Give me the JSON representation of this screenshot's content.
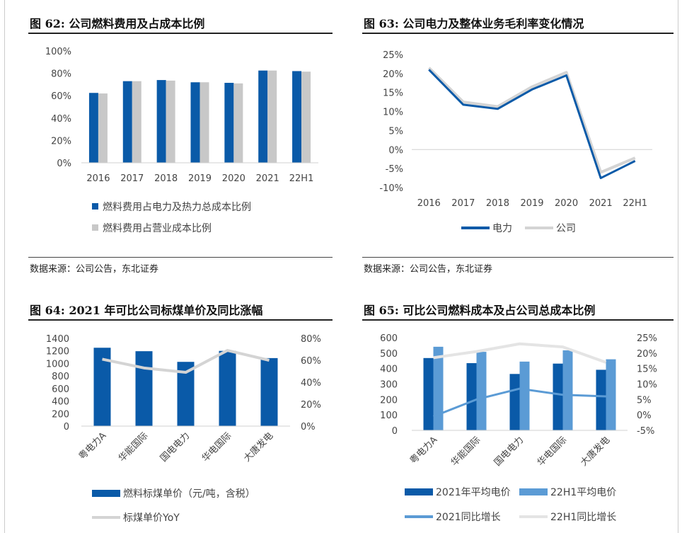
{
  "figures": [
    {
      "title": "图 62: 公司燃料费用及占成本比例",
      "source": "数据来源：公司公告，东北证券"
    },
    {
      "title": "图 63: 公司电力及整体业务毛利率变化情况",
      "source": "数据来源：公司公告，东北证券"
    },
    {
      "title": "图 64: 2021 年可比公司标煤单价及同比涨幅",
      "source": ""
    },
    {
      "title": "图 65: 可比公司燃料成本及占公司总成本比例",
      "source": ""
    }
  ],
  "colors": {
    "blue_dark": "#0a5aa8",
    "blue_light": "#5b9bd5",
    "gray": "#c8c8c8",
    "gray_line": "#d4d4d4"
  },
  "chart_data": [
    {
      "id": "fig62",
      "type": "bar",
      "categories": [
        "2016",
        "2017",
        "2018",
        "2019",
        "2020",
        "2021",
        "22H1"
      ],
      "series": [
        {
          "name": "燃料费用占电力及热力总成本比例",
          "values": [
            62.5,
            73,
            74,
            72,
            71.5,
            82.5,
            82
          ],
          "color": "#0a5aa8"
        },
        {
          "name": "燃料费用占营业成本比例",
          "values": [
            62,
            73,
            73.5,
            72,
            71,
            82.5,
            81.5
          ],
          "color": "#c8c8c8"
        }
      ],
      "ylim": [
        0,
        100
      ],
      "yticks": [
        "0%",
        "20%",
        "40%",
        "60%",
        "80%",
        "100%"
      ],
      "ytick_values": [
        0,
        20,
        40,
        60,
        80,
        100
      ],
      "grid": false,
      "legend": "bottom"
    },
    {
      "id": "fig63",
      "type": "line",
      "categories": [
        "2016",
        "2017",
        "2018",
        "2019",
        "2020",
        "2021",
        "22H1"
      ],
      "series": [
        {
          "name": "电力",
          "values": [
            21.0,
            11.8,
            10.7,
            15.8,
            19.5,
            -7.5,
            -3.0
          ],
          "color": "#0a5aa8"
        },
        {
          "name": "公司",
          "values": [
            21.5,
            12.5,
            11.3,
            16.5,
            20.3,
            -6.0,
            -2.2
          ],
          "color": "#d4d4d4"
        }
      ],
      "ylim": [
        -10,
        25
      ],
      "yticks": [
        "-10%",
        "-5%",
        "0%",
        "5%",
        "10%",
        "15%",
        "20%",
        "25%"
      ],
      "ytick_values": [
        -10,
        -5,
        0,
        5,
        10,
        15,
        20,
        25
      ],
      "grid": false,
      "legend": "bottom"
    },
    {
      "id": "fig64",
      "type": "bar",
      "categories": [
        "粤电力A",
        "华能国际",
        "国电电力",
        "华电国际",
        "大唐发电"
      ],
      "series": [
        {
          "name": "燃料标煤单价（元/吨，含税）",
          "values": [
            1250,
            1195,
            1025,
            1200,
            1085
          ],
          "axis": "left",
          "color": "#0a5aa8"
        },
        {
          "name": "标煤单价YoY",
          "values": [
            61,
            53,
            49,
            69,
            60
          ],
          "axis": "right",
          "kind": "line",
          "color": "#d4d4d4"
        }
      ],
      "ylim_left": [
        0,
        1400
      ],
      "yticks_left": [
        "0",
        "200",
        "400",
        "600",
        "800",
        "1000",
        "1200",
        "1400"
      ],
      "ytick_values_left": [
        0,
        200,
        400,
        600,
        800,
        1000,
        1200,
        1400
      ],
      "ylim_right": [
        0,
        80
      ],
      "yticks_right": [
        "0%",
        "20%",
        "40%",
        "60%",
        "80%"
      ],
      "ytick_values_right": [
        0,
        20,
        40,
        60,
        80
      ],
      "grid": false,
      "legend": "bottom"
    },
    {
      "id": "fig65",
      "type": "bar",
      "categories": [
        "粤电力A",
        "华能国际",
        "国电电力",
        "华电国际",
        "大唐发电"
      ],
      "series": [
        {
          "name": "2021年平均电价",
          "values": [
            468,
            435,
            365,
            432,
            392
          ],
          "axis": "left",
          "color": "#0a5aa8"
        },
        {
          "name": "22H1平均电价",
          "values": [
            541,
            508,
            445,
            518,
            460
          ],
          "axis": "left",
          "color": "#5b9bd5"
        },
        {
          "name": "2021同比增长",
          "values": [
            -0.5,
            5.0,
            8.5,
            6.5,
            6.0
          ],
          "axis": "right",
          "kind": "line",
          "color": "#5b9bd5"
        },
        {
          "name": "22H1同比增长",
          "values": [
            18.5,
            20.5,
            23.0,
            22.0,
            17.0
          ],
          "axis": "right",
          "kind": "line",
          "color": "#e4e4e4"
        }
      ],
      "ylim_left": [
        0,
        600
      ],
      "yticks_left": [
        "0",
        "100",
        "200",
        "300",
        "400",
        "500",
        "600"
      ],
      "ytick_values_left": [
        0,
        100,
        200,
        300,
        400,
        500,
        600
      ],
      "ylim_right": [
        -5,
        25
      ],
      "yticks_right": [
        "-5%",
        "0%",
        "5%",
        "10%",
        "15%",
        "20%",
        "25%"
      ],
      "ytick_values_right": [
        -5,
        0,
        5,
        10,
        15,
        20,
        25
      ],
      "grid": false,
      "legend": "bottom"
    }
  ]
}
